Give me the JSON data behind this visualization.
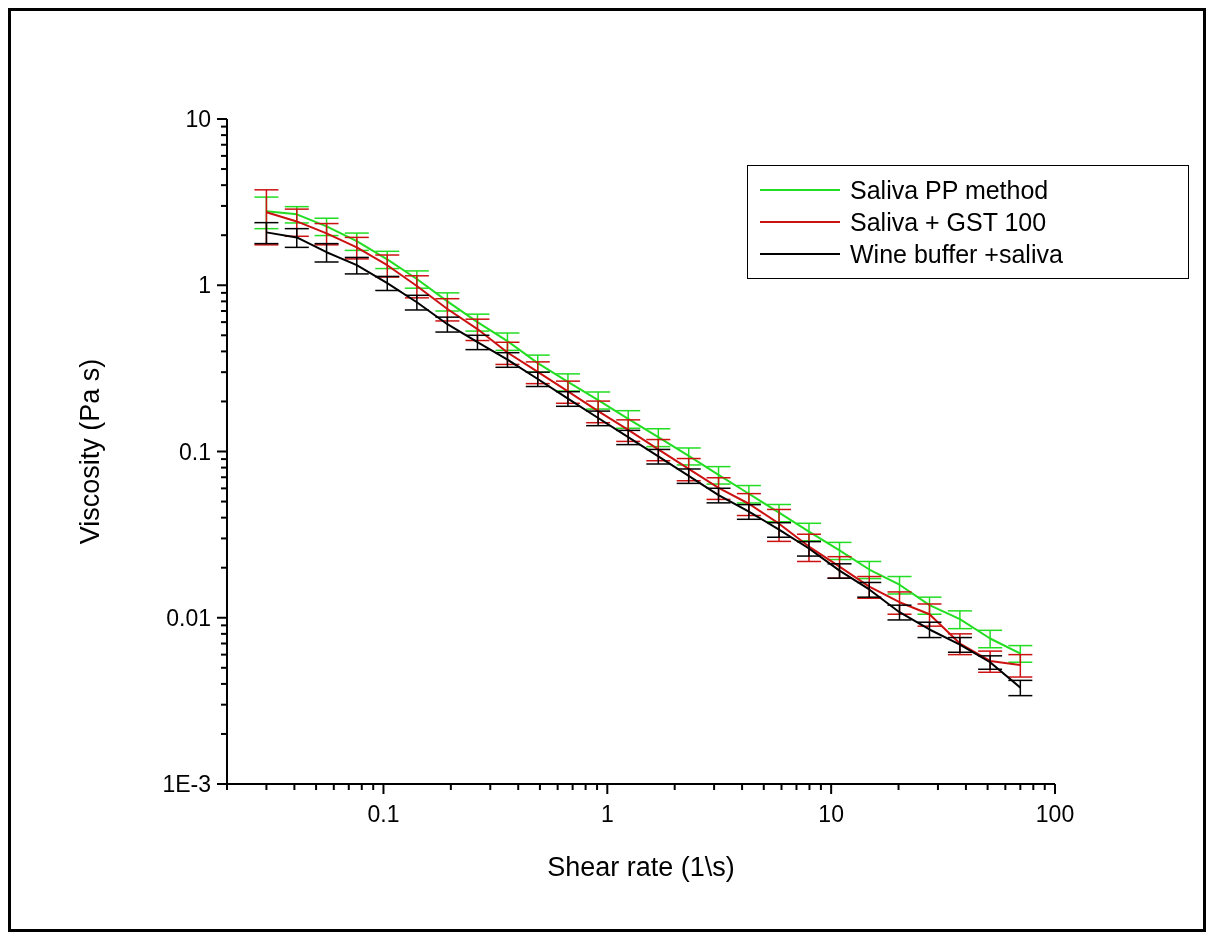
{
  "chart_data": {
    "type": "line",
    "xlabel": "Shear rate (1\\s)",
    "ylabel": "Viscosity (Pa s)",
    "log": "xy",
    "legend": "top right",
    "marker": "none",
    "line_style": "solid",
    "xlim": [
      0.02,
      100
    ],
    "ylim": [
      0.001,
      10
    ],
    "xticks": [
      {
        "value": 0.02,
        "label": null
      },
      {
        "value": 0.03,
        "label": null
      },
      {
        "value": 0.04,
        "label": null
      },
      {
        "value": 0.05,
        "label": null
      },
      {
        "value": 0.06,
        "label": null
      },
      {
        "value": 0.07,
        "label": null
      },
      {
        "value": 0.08,
        "label": null
      },
      {
        "value": 0.09,
        "label": null
      },
      0.1,
      {
        "value": 0.2,
        "label": null
      },
      {
        "value": 0.3,
        "label": null
      },
      {
        "value": 0.4,
        "label": null
      },
      {
        "value": 0.5,
        "label": null
      },
      {
        "value": 0.6,
        "label": null
      },
      {
        "value": 0.7,
        "label": null
      },
      {
        "value": 0.8,
        "label": null
      },
      {
        "value": 0.9,
        "label": null
      },
      1,
      {
        "value": 2,
        "label": null
      },
      {
        "value": 3,
        "label": null
      },
      {
        "value": 4,
        "label": null
      },
      {
        "value": 5,
        "label": null
      },
      {
        "value": 6,
        "label": null
      },
      {
        "value": 7,
        "label": null
      },
      {
        "value": 8,
        "label": null
      },
      {
        "value": 9,
        "label": null
      },
      10,
      {
        "value": 20,
        "label": null
      },
      {
        "value": 30,
        "label": null
      },
      {
        "value": 40,
        "label": null
      },
      {
        "value": 50,
        "label": null
      },
      {
        "value": 60,
        "label": null
      },
      {
        "value": 70,
        "label": null
      },
      {
        "value": 80,
        "label": null
      },
      {
        "value": 90,
        "label": null
      },
      100
    ],
    "yticks": [
      {
        "value": 0.001,
        "label": "1E-3"
      },
      {
        "value": 0.002,
        "label": null
      },
      {
        "value": 0.003,
        "label": null
      },
      {
        "value": 0.004,
        "label": null
      },
      {
        "value": 0.005,
        "label": null
      },
      {
        "value": 0.006,
        "label": null
      },
      {
        "value": 0.007,
        "label": null
      },
      {
        "value": 0.008,
        "label": null
      },
      {
        "value": 0.009,
        "label": null
      },
      0.01,
      {
        "value": 0.02,
        "label": null
      },
      {
        "value": 0.03,
        "label": null
      },
      {
        "value": 0.04,
        "label": null
      },
      {
        "value": 0.05,
        "label": null
      },
      {
        "value": 0.06,
        "label": null
      },
      {
        "value": 0.07,
        "label": null
      },
      {
        "value": 0.08,
        "label": null
      },
      {
        "value": 0.09,
        "label": null
      },
      0.1,
      {
        "value": 0.2,
        "label": null
      },
      {
        "value": 0.3,
        "label": null
      },
      {
        "value": 0.4,
        "label": null
      },
      {
        "value": 0.5,
        "label": null
      },
      {
        "value": 0.6,
        "label": null
      },
      {
        "value": 0.7,
        "label": null
      },
      {
        "value": 0.8,
        "label": null
      },
      {
        "value": 0.9,
        "label": null
      },
      1,
      {
        "value": 2,
        "label": null
      },
      {
        "value": 3,
        "label": null
      },
      {
        "value": 4,
        "label": null
      },
      {
        "value": 5,
        "label": null
      },
      {
        "value": 6,
        "label": null
      },
      {
        "value": 7,
        "label": null
      },
      {
        "value": 8,
        "label": null
      },
      {
        "value": 9,
        "label": null
      },
      10
    ],
    "x": [
      0.03,
      0.041,
      0.0557,
      0.076,
      0.104,
      0.141,
      0.193,
      0.263,
      0.358,
      0.489,
      0.667,
      0.91,
      1.24,
      1.69,
      2.31,
      3.14,
      4.29,
      5.85,
      7.96,
      10.9,
      14.8,
      20.2,
      27.5,
      37.6,
      51.3,
      70
    ],
    "series": [
      {
        "name": "Saliva PP method",
        "color": "#22dd22",
        "values": [
          2.79,
          2.67,
          2.26,
          1.84,
          1.43,
          1.09,
          0.8,
          0.6,
          0.461,
          0.34,
          0.262,
          0.204,
          0.157,
          0.122,
          0.094,
          0.0724,
          0.0557,
          0.0429,
          0.033,
          0.0254,
          0.0195,
          0.0158,
          0.0119,
          0.0098,
          0.0075,
          0.0061
        ],
        "errors": [
          0.6,
          0.3,
          0.27,
          0.22,
          0.17,
          0.13,
          0.1,
          0.07,
          0.055,
          0.04,
          0.031,
          0.024,
          0.019,
          0.015,
          0.011,
          0.0087,
          0.0067,
          0.0051,
          0.004,
          0.003,
          0.0023,
          0.0019,
          0.0014,
          0.0012,
          0.0009,
          0.0007
        ]
      },
      {
        "name": "Saliva + GST 100",
        "color": "#cc1111",
        "values": [
          2.75,
          2.42,
          2.05,
          1.69,
          1.32,
          0.99,
          0.72,
          0.545,
          0.394,
          0.301,
          0.23,
          0.175,
          0.135,
          0.103,
          0.0787,
          0.0605,
          0.0485,
          0.0368,
          0.0268,
          0.0203,
          0.0154,
          0.0124,
          0.0105,
          0.007,
          0.0055,
          0.0052
        ],
        "errors": [
          1.0,
          0.45,
          0.3,
          0.25,
          0.2,
          0.15,
          0.11,
          0.08,
          0.06,
          0.045,
          0.035,
          0.026,
          0.02,
          0.015,
          0.012,
          0.009,
          0.0073,
          0.008,
          0.005,
          0.003,
          0.0023,
          0.0019,
          0.0016,
          0.001,
          0.0008,
          0.0008
        ]
      },
      {
        "name": "Wine buffer +saliva",
        "color": "#000000",
        "values": [
          2.08,
          1.94,
          1.58,
          1.32,
          1.03,
          0.79,
          0.583,
          0.455,
          0.357,
          0.273,
          0.208,
          0.159,
          0.122,
          0.0935,
          0.0714,
          0.0546,
          0.0435,
          0.0339,
          0.0261,
          0.0192,
          0.0148,
          0.0108,
          0.0085,
          0.0069,
          0.0054,
          0.0038
        ],
        "errors": [
          0.3,
          0.25,
          0.2,
          0.15,
          0.1,
          0.08,
          0.06,
          0.045,
          0.036,
          0.027,
          0.021,
          0.016,
          0.012,
          0.0094,
          0.0071,
          0.0055,
          0.0044,
          0.0034,
          0.0026,
          0.0019,
          0.0015,
          0.0011,
          0.0009,
          0.0007,
          0.0005,
          0.0004
        ]
      }
    ]
  }
}
